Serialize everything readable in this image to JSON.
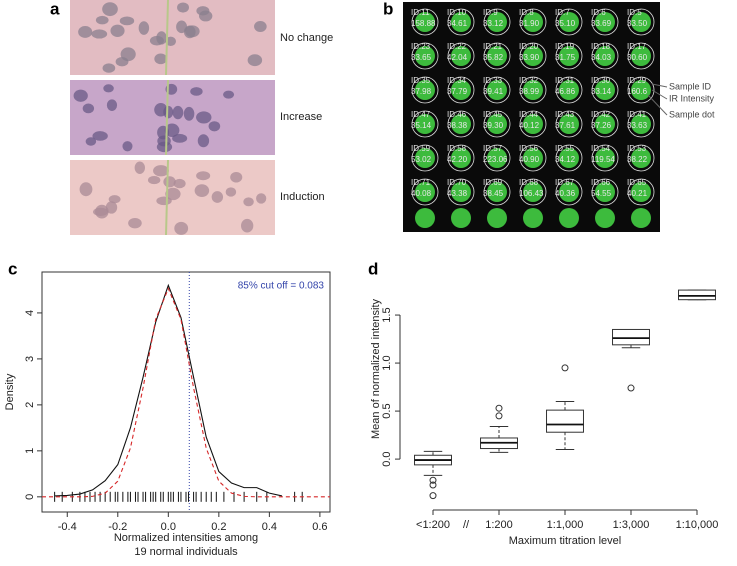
{
  "panels": {
    "a": {
      "panel_label": "a",
      "labels": [
        "No change",
        "Increase",
        "Induction"
      ]
    },
    "b": {
      "panel_label": "b",
      "spots": [
        [
          {
            "id": "ID:11",
            "intensity": "158.88"
          },
          {
            "id": "ID:10",
            "intensity": "34.61"
          },
          {
            "id": "ID:9",
            "intensity": "33.12"
          },
          {
            "id": "ID:8",
            "intensity": "31.90"
          },
          {
            "id": "ID:7",
            "intensity": "35.10"
          },
          {
            "id": "ID:6",
            "intensity": "33.69"
          },
          {
            "id": "ID:5",
            "intensity": "33.50"
          }
        ],
        [
          {
            "id": "ID:23",
            "intensity": "33.65"
          },
          {
            "id": "ID:22",
            "intensity": "42.04"
          },
          {
            "id": "ID:21",
            "intensity": "35.82"
          },
          {
            "id": "ID:20",
            "intensity": "33.90"
          },
          {
            "id": "ID:19",
            "intensity": "31.75"
          },
          {
            "id": "ID:18",
            "intensity": "34.03"
          },
          {
            "id": "ID:17",
            "intensity": "30.60"
          }
        ],
        [
          {
            "id": "ID:35",
            "intensity": "37.98"
          },
          {
            "id": "ID:34",
            "intensity": "37.79"
          },
          {
            "id": "ID:33",
            "intensity": "39.41"
          },
          {
            "id": "ID:32",
            "intensity": "38.99"
          },
          {
            "id": "ID:31",
            "intensity": "46.86"
          },
          {
            "id": "ID:30",
            "intensity": "33.14"
          },
          {
            "id": "ID:29",
            "intensity": "160.6"
          }
        ],
        [
          {
            "id": "ID:47",
            "intensity": "35.14"
          },
          {
            "id": "ID:46",
            "intensity": "38.38"
          },
          {
            "id": "ID:45",
            "intensity": "39.30"
          },
          {
            "id": "ID:44",
            "intensity": "40.12"
          },
          {
            "id": "ID:43",
            "intensity": "37.61"
          },
          {
            "id": "ID:42",
            "intensity": "37.26"
          },
          {
            "id": "ID:41",
            "intensity": "33.63"
          }
        ],
        [
          {
            "id": "ID:59",
            "intensity": "53.02"
          },
          {
            "id": "ID:58",
            "intensity": "42.20"
          },
          {
            "id": "ID:57",
            "intensity": "223.06"
          },
          {
            "id": "ID:56",
            "intensity": "40.90"
          },
          {
            "id": "ID:55",
            "intensity": "34.12"
          },
          {
            "id": "ID:54",
            "intensity": "119.54"
          },
          {
            "id": "ID:53",
            "intensity": "38.22"
          }
        ],
        [
          {
            "id": "ID:71",
            "intensity": "40.08"
          },
          {
            "id": "ID:70",
            "intensity": "43.38"
          },
          {
            "id": "ID:69",
            "intensity": "38.45"
          },
          {
            "id": "ID:68",
            "intensity": "106.43"
          },
          {
            "id": "ID:67",
            "intensity": "40.36"
          },
          {
            "id": "ID:66",
            "intensity": "54.55"
          },
          {
            "id": "ID:65",
            "intensity": "40.21"
          }
        ]
      ],
      "callouts": [
        "Sample ID",
        "IR Intensity",
        "Sample dot"
      ]
    }
  },
  "chart_data": [
    {
      "type": "density",
      "panel_label": "c",
      "annotation": "85% cut off = 0.083",
      "cutoff": 0.083,
      "cutoff_color": "#3344aa",
      "x_label": [
        "Normalized intensities among",
        "19 normal individuals"
      ],
      "y_label": "Density",
      "xlim": [
        -0.5,
        0.64
      ],
      "ylim": [
        -0.33,
        4.89
      ],
      "xticks": [
        -0.4,
        -0.2,
        {
          "value": 0,
          "label": "0.0"
        },
        0.2,
        0.4,
        0.6
      ],
      "yticks": [
        0,
        1,
        2,
        3,
        4
      ],
      "series": [
        {
          "color": "#111111",
          "style": "solid",
          "x": [
            -0.45,
            -0.4,
            -0.35,
            -0.3,
            -0.25,
            -0.2,
            -0.15,
            -0.1,
            -0.05,
            0,
            0.05,
            0.1,
            0.15,
            0.2,
            0.25,
            0.3,
            0.35,
            0.4,
            0.45
          ],
          "values": [
            0.02,
            0.03,
            0.06,
            0.15,
            0.35,
            0.7,
            1.5,
            2.6,
            3.8,
            4.6,
            3.9,
            2.6,
            1.3,
            0.55,
            0.3,
            0.2,
            0.2,
            0.08,
            0.02
          ]
        },
        {
          "color": "#d62728",
          "style": "dashed",
          "x": [
            -0.5,
            -0.4,
            -0.35,
            -0.3,
            -0.25,
            -0.2,
            -0.15,
            -0.1,
            -0.05,
            0,
            0.05,
            0.1,
            0.15,
            0.2,
            0.25,
            0.3,
            0.35,
            0.4,
            0.64
          ],
          "values": [
            0,
            0,
            0,
            0.01,
            0.08,
            0.34,
            1.06,
            2.37,
            3.86,
            4.53,
            3.86,
            2.37,
            1.06,
            0.34,
            0.08,
            0.01,
            0,
            0,
            0
          ]
        }
      ],
      "rug": [
        -0.45,
        -0.42,
        -0.38,
        -0.35,
        -0.33,
        -0.31,
        -0.29,
        -0.27,
        -0.25,
        -0.23,
        -0.21,
        -0.2,
        -0.18,
        -0.16,
        -0.15,
        -0.13,
        -0.12,
        -0.1,
        -0.09,
        -0.07,
        -0.06,
        -0.05,
        -0.03,
        -0.02,
        0,
        0.01,
        0.02,
        0.04,
        0.05,
        0.07,
        0.08,
        0.1,
        0.11,
        0.13,
        0.15,
        0.17,
        0.19,
        0.22,
        0.26,
        0.3,
        0.35,
        0.39,
        0.5,
        0.53
      ]
    },
    {
      "type": "box",
      "panel_label": "d",
      "y_label": "Mean of normalized intensity",
      "x_label": "Maximum titration level",
      "axis_break": "//",
      "categories": [
        "<1:200",
        "1:200",
        "1:1,000",
        "1:3,000",
        "1:10,000"
      ],
      "ylim": [
        -0.53,
        1.99
      ],
      "yticks": [
        {
          "value": 0,
          "label": "0.0"
        },
        0.5,
        {
          "value": 1,
          "label": "1.0"
        },
        1.5
      ],
      "boxes": [
        {
          "min": -0.17,
          "q1": -0.06,
          "median": -0.01,
          "q3": 0.04,
          "max": 0.08,
          "outliers": [
            -0.22,
            -0.27,
            -0.38
          ]
        },
        {
          "min": 0.07,
          "q1": 0.11,
          "median": 0.17,
          "q3": 0.22,
          "max": 0.34,
          "outliers": [
            0.45,
            0.53
          ]
        },
        {
          "min": 0.1,
          "q1": 0.28,
          "median": 0.36,
          "q3": 0.51,
          "max": 0.6,
          "outliers": [
            0.95
          ]
        },
        {
          "min": 1.16,
          "q1": 1.19,
          "median": 1.26,
          "q3": 1.35,
          "max": 1.35,
          "outliers": [
            0.74
          ]
        },
        {
          "min": 1.66,
          "q1": 1.66,
          "median": 1.7,
          "q3": 1.76,
          "max": 1.76,
          "outliers": []
        }
      ]
    }
  ]
}
